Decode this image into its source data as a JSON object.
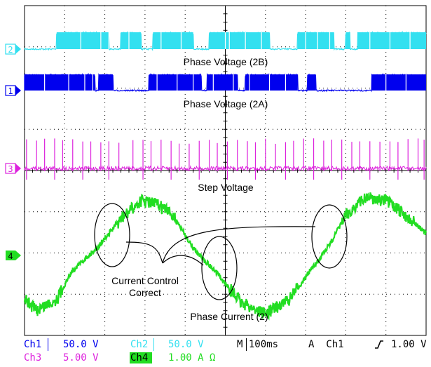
{
  "chart_data": {
    "type": "line",
    "title": "",
    "grid": true,
    "channels": [
      {
        "id": "2",
        "name": "Phase Voltage (2B)",
        "color": "#33e0f0",
        "kind": "pwm",
        "high_segments": [
          [
            0.8,
            2.1
          ],
          [
            2.4,
            2.9
          ],
          [
            3.2,
            4.2
          ],
          [
            4.6,
            6.1
          ],
          [
            6.8,
            7.7
          ],
          [
            8.0,
            8.1
          ],
          [
            8.3,
            10.0
          ]
        ],
        "dropouts": [
          1.4,
          1.9,
          2.1,
          2.6,
          3.4,
          3.9,
          5.0,
          5.1,
          5.5,
          5.9,
          7.0,
          7.3,
          7.6,
          8.6,
          9.1,
          9.6
        ]
      },
      {
        "id": "1",
        "name": "Phase Voltage (2A)",
        "color": "#0000ee",
        "kind": "pwm",
        "high_segments": [
          [
            0.0,
            1.75
          ],
          [
            1.85,
            2.2
          ],
          [
            3.1,
            4.4
          ],
          [
            4.55,
            5.3
          ],
          [
            5.5,
            6.8
          ],
          [
            7.05,
            7.25
          ],
          [
            8.65,
            10.0
          ]
        ],
        "dropouts": [
          0.5,
          1.1,
          1.5,
          1.7,
          3.3,
          3.8,
          4.2,
          4.7,
          5.2,
          5.6,
          6.1,
          6.5,
          9.0,
          9.5
        ]
      },
      {
        "id": "3",
        "name": "Step Voltage",
        "color": "#dd22dd",
        "kind": "pulses",
        "pulse_times": [
          0.05,
          0.3,
          0.5,
          0.75,
          0.95,
          1.2,
          1.45,
          1.65,
          1.9,
          2.1,
          2.35,
          2.7,
          2.95,
          3.15,
          3.4,
          3.65,
          3.85,
          4.1,
          4.35,
          4.6,
          4.8,
          5.05,
          5.3,
          5.55,
          5.75,
          6.0,
          6.25,
          6.5,
          6.7,
          6.95,
          7.2,
          7.45,
          7.65,
          7.9,
          8.15,
          8.35,
          8.6,
          8.85,
          9.1,
          9.3,
          9.55,
          9.8,
          9.95
        ]
      },
      {
        "id": "4",
        "name": "Phase Current (2)",
        "color": "#22dd22",
        "kind": "analog",
        "x": [
          0.0,
          0.3,
          0.8,
          1.2,
          1.8,
          2.4,
          2.9,
          3.3,
          3.7,
          4.2,
          4.8,
          5.4,
          6.0,
          6.6,
          7.2,
          7.6,
          8.0,
          8.5,
          9.0,
          9.6,
          10.0
        ],
        "y": [
          -1.2,
          -1.5,
          -1.2,
          -0.4,
          0.2,
          1.0,
          1.5,
          1.4,
          1.1,
          0.2,
          -0.5,
          -1.3,
          -1.6,
          -1.2,
          -0.3,
          0.3,
          1.1,
          1.6,
          1.5,
          1.0,
          0.6
        ]
      }
    ],
    "annotations": [
      {
        "text": "Phase Voltage (2B)"
      },
      {
        "text": "Phase Voltage (2A)"
      },
      {
        "text": "Step Voltage"
      },
      {
        "text": "Current Control Correct"
      },
      {
        "text": "Phase Current (2)"
      }
    ],
    "callout_label": [
      "Current Control",
      "Correct"
    ]
  },
  "status_bar": {
    "ch1_label": "Ch1",
    "ch1_scale": "50.0 V",
    "ch2_label": "Ch2",
    "ch2_scale": "50.0 V",
    "timebase": "M 100ms",
    "trigger": "A  Ch1",
    "trigger_slope": "rising-edge-icon",
    "trigger_level": "1.00 V",
    "ch3_label": "Ch3",
    "ch3_scale": "5.00 V",
    "ch4_label": "Ch4",
    "ch4_scale": "1.00 A Ω"
  },
  "colors": {
    "ch1": "#0000ee",
    "ch2": "#33e0f0",
    "ch3": "#dd22dd",
    "ch4": "#22dd22",
    "grid": "#000000"
  }
}
